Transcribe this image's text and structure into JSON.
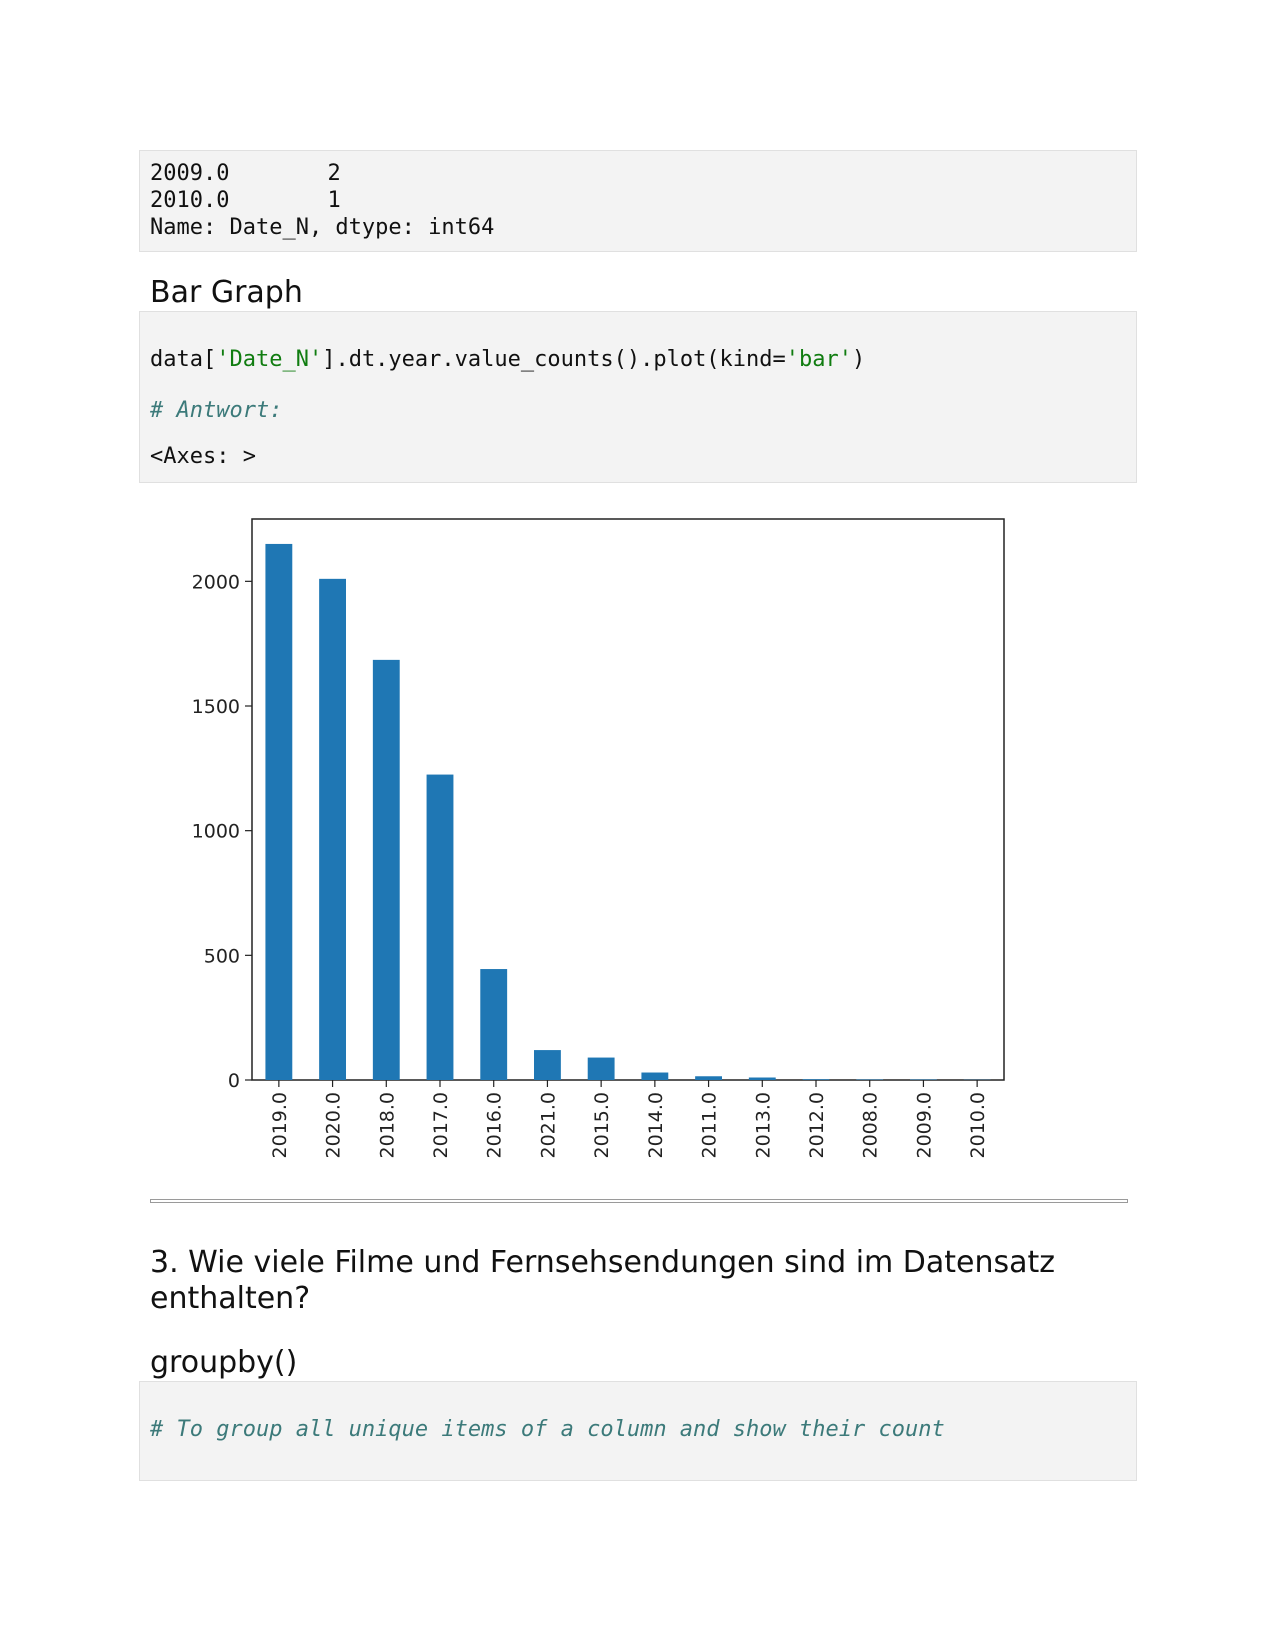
{
  "output_block": {
    "lines": [
      {
        "year": "2009.0",
        "count": "2"
      },
      {
        "year": "2010.0",
        "count": "1"
      }
    ],
    "footer": "Name: Date_N, dtype: int64"
  },
  "bar_graph_heading": "Bar Graph",
  "code_block": {
    "code_prefix": "data[",
    "code_str1": "'Date_N'",
    "code_mid": "].dt.year.value_counts().plot(kind=",
    "code_str2": "'bar'",
    "code_suffix": ")",
    "comment": "# Antwort:",
    "result": "<Axes: >"
  },
  "chart_data": {
    "type": "bar",
    "categories": [
      "2019.0",
      "2020.0",
      "2018.0",
      "2017.0",
      "2016.0",
      "2021.0",
      "2015.0",
      "2014.0",
      "2011.0",
      "2013.0",
      "2012.0",
      "2008.0",
      "2009.0",
      "2010.0"
    ],
    "values": [
      2150,
      2010,
      1685,
      1225,
      445,
      120,
      90,
      30,
      15,
      10,
      3,
      2,
      2,
      1
    ],
    "yticks": [
      "0",
      "500",
      "1000",
      "1500",
      "2000"
    ],
    "ytick_values": [
      0,
      500,
      1000,
      1500,
      2000
    ],
    "ylim": [
      0,
      2250
    ],
    "bar_color": "#1f77b4",
    "grid": false
  },
  "question_heading_line1": "3. Wie viele Filme und Fernsehsendungen sind im Datensatz",
  "question_heading_line2": "enthalten?",
  "groupby_heading": "groupby()",
  "comment_block": {
    "comment": "# To group all unique items of a column and show their count"
  }
}
